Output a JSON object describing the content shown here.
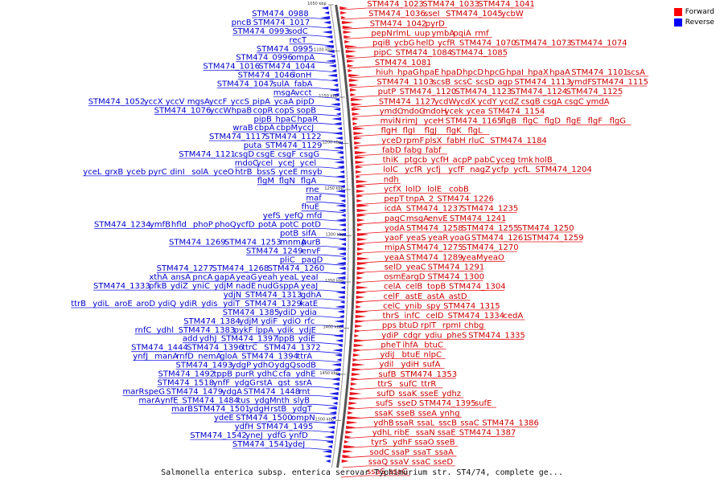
{
  "caption": "Salmonella enterica subsp. enterica serovar Typhimurium str. ST4/74, complete ge...",
  "legend": [
    {
      "label": "Forward",
      "color": "#ff0000"
    },
    {
      "label": "Reverse",
      "color": "#0000ff"
    }
  ],
  "colors": {
    "forward": "#e8131b",
    "reverse": "#1a1ae6",
    "forward_text": "#cc0000",
    "reverse_text": "#0000cc",
    "backbone": "#555555"
  },
  "scale_ticks": [
    "1050 kbp",
    "1100 kbp",
    "1150 kbp",
    "1200 kbp",
    "1250 kbp",
    "1300 kbp",
    "1350 kbp",
    "1400 kbp",
    "1450 kbp",
    "1500 kbp"
  ],
  "reverse_rows": [
    [
      "STM474_0988"
    ],
    [
      "pncB",
      "STM474_1017"
    ],
    [
      "STM474_0993",
      "sodC"
    ],
    [
      "recT"
    ],
    [
      "STM474_0995"
    ],
    [
      "STM474_0996",
      "ompA"
    ],
    [
      "STM474_1016",
      "STM474_1044"
    ],
    [
      "STM474_1046",
      "lonH"
    ],
    [
      "STM474_1047",
      "sulA",
      "fabA"
    ],
    [
      "msgA",
      "vcct"
    ],
    [
      "STM474_1052",
      "yccX",
      "yccV",
      "mgsA",
      "yccF",
      "yccS",
      "pipA",
      "ycaA",
      "pipD"
    ],
    [
      "STM474_1076",
      "yccW",
      "hpaB",
      "copR",
      "copS",
      "sopB"
    ],
    [
      "pipB",
      "hpaC",
      "hpaR"
    ],
    [
      "wraB",
      "cbpA",
      "cbpM",
      "yccJ"
    ],
    [
      "STM474_1117",
      "STM474_1122"
    ],
    [
      "puta",
      "STM474_1129"
    ],
    [
      "STM474_1121",
      "csgD",
      "csgE",
      "csgF",
      "csgG"
    ],
    [
      "mdoC",
      "ycel",
      "yceJ",
      "ycel"
    ],
    [
      "yceL",
      "grxB",
      "yceb",
      "pyrC",
      "dinI",
      "solA",
      "yceO",
      "htrB",
      "bssS",
      "yceE",
      "msyb"
    ],
    [
      "flgM",
      "flgN",
      "flgA"
    ],
    [
      "rne"
    ],
    [
      "maf"
    ],
    [
      "fhuE"
    ],
    [
      "yefS",
      "yefQ",
      "mfd"
    ],
    [
      "STM474_1234",
      "ymfB",
      "hfld",
      "phoP",
      "phoQ",
      "ycfD",
      "potA",
      "potC",
      "potD"
    ],
    [
      "potB",
      "sifA"
    ],
    [
      "STM474_1269",
      "STM474_1253",
      "mnmA",
      "purB"
    ],
    [
      "STM474_1249",
      "envF"
    ],
    [
      "pliC",
      "pagD"
    ],
    [
      "STM474_1277",
      "STM474_1268",
      "STM474_1260"
    ],
    [
      "xthA",
      "ansA",
      "pncA",
      "gapA",
      "yeaG",
      "yeah",
      "yeaL",
      "yeaI"
    ],
    [
      "STM474_1333",
      "pfkB",
      "ydiZ",
      "yniC",
      "ydjM",
      "nadE",
      "nudG",
      "sppA",
      "yeaJ"
    ],
    [
      "ydjN",
      "STM474_1313",
      "gdhA"
    ],
    [
      "ttrB",
      "ydiL",
      "aroE",
      "aroD",
      "ydiQ",
      "ydiR",
      "ydis",
      "ydiT",
      "STM474_1329",
      "katE"
    ],
    [
      "STM474_1385",
      "ydiD",
      "ydia"
    ],
    [
      "STM474_1384",
      "ydjM",
      "ydiF",
      "ydiO",
      "rfc"
    ],
    [
      "rnfC",
      "ydhl",
      "STM474_1383",
      "pykF",
      "lppA",
      "ydik",
      "ydjE"
    ],
    [
      "add",
      "ydhJ",
      "STM474_1397",
      "lppB",
      "ydiE"
    ],
    [
      "STM474_1444",
      "STM474_1396",
      "ttrC",
      "STM474_1372"
    ],
    [
      "ynfJ",
      "manA",
      "rnfD",
      "nemA",
      "gloA",
      "STM474_1394",
      "ttrA"
    ],
    [
      "STM474_1493",
      "ydgP",
      "ydhO",
      "ydgQ",
      "sodB"
    ],
    [
      "STM474_1492",
      "tppB",
      "purR",
      "ydhC",
      "cfa",
      "ydhE"
    ],
    [
      "STM474_1518",
      "ynfF",
      "ydgG",
      "rstA",
      "gst",
      "ssrA"
    ],
    [
      "marR",
      "speG",
      "STM474_1479",
      "ydgA",
      "STM474_1448",
      "rnt"
    ],
    [
      "marA",
      "ynfE",
      "STM474_1484",
      "tus",
      "ydgM",
      "nth",
      "slyB"
    ],
    [
      "marB",
      "STM474_1501",
      "ydgH",
      "rstB",
      "ydgT"
    ],
    [
      "ydeE",
      "STM474_1500",
      "ompN"
    ],
    [
      "ydfH",
      "STM474_1495"
    ],
    [
      "STM474_1542",
      "yneJ",
      "ydfG",
      "ynfD"
    ],
    [
      "STM474_1541",
      "ydeJ"
    ]
  ],
  "forward_rows": [
    [
      "STM474_1023",
      "STM474_1033",
      "STM474_1041"
    ],
    [
      "STM474_1036",
      "sseI",
      "STM474_1045",
      "ycbW"
    ],
    [
      "STM474_1042",
      "pyrD"
    ],
    [
      "pepN",
      "rlmL",
      "uup",
      "ymbA",
      "pqiA",
      "rmf"
    ],
    [
      "pqiB",
      "ycbG",
      "helD",
      "ycfR",
      "STM474_1070",
      "STM474_1073",
      "STM474_1074"
    ],
    [
      "pipC",
      "STM474_1084",
      "STM474_1085"
    ],
    [
      "STM474_1081"
    ],
    [
      "hiuh",
      "hpaG",
      "hpaE",
      "hpaD",
      "hpcD",
      "hpcG",
      "hpaI",
      "hpaX",
      "hpaA",
      "STM474_1101",
      "scsA"
    ],
    [
      "STM474_1103",
      "scsB",
      "scsC",
      "scsD",
      "agp",
      "STM474_1113",
      "ymdF",
      "STM474_1115"
    ],
    [
      "putP",
      "STM474_1120",
      "STM474_1123",
      "STM474_1124",
      "STM474_1125"
    ],
    [
      "STM474_1127",
      "ycdW",
      "ycdX",
      "ycdY",
      "ycdZ",
      "csgB",
      "csgA",
      "csgC",
      "ymdA"
    ],
    [
      "ymdC",
      "mdoG",
      "mdoH",
      "ycek",
      "ycea",
      "STM474_1154"
    ],
    [
      "mviN",
      "rimJ",
      "yceH",
      "STM474_1165",
      "flgB",
      "flgC",
      "flgD",
      "flgE",
      "flgF",
      "flgG"
    ],
    [
      "flgH",
      "flgI",
      "flgJ",
      "flgK",
      "flgL"
    ],
    [
      "yceD",
      "rpmF",
      "plsX",
      "fabH",
      "rluC",
      "STM474_1184"
    ],
    [
      "fabD",
      "fabg",
      "fabf"
    ],
    [
      "thiK",
      "ptgcb",
      "ycfH",
      "acpP",
      "pabC",
      "yceg",
      "tmk",
      "holB"
    ],
    [
      "lolC",
      "ycfR",
      "ycfj",
      "ycfF",
      "nagZ",
      "ycfp",
      "ycfL",
      "STM474_1204"
    ],
    [
      "ndh"
    ],
    [
      "ycfX",
      "lolD",
      "lolE",
      "cobB"
    ],
    [
      "pepT",
      "tnpA_2",
      "STM474_1226"
    ],
    [
      "icdA",
      "STM474_1237",
      "STM474_1235"
    ],
    [
      "pagC",
      "msgA",
      "envE",
      "STM474_1241"
    ],
    [
      "yodA",
      "STM474_1258",
      "STM474_1255",
      "STM474_1250"
    ],
    [
      "yaoF",
      "yeaS",
      "yeaR",
      "yoaG",
      "STM474_1261",
      "STM474_1259"
    ],
    [
      "mipA",
      "STM474_1275",
      "STM474_1270"
    ],
    [
      "yeaA",
      "STM474_1289",
      "yeaM",
      "yeaO"
    ],
    [
      "selD",
      "yeaC",
      "STM474_1291"
    ],
    [
      "osmE",
      "argD",
      "STM474_1300"
    ],
    [
      "celA",
      "celB",
      "topB",
      "STM474_1304"
    ],
    [
      "celF",
      "astE",
      "astA",
      "astD"
    ],
    [
      "celC",
      "ynib",
      "spy",
      "STM474_1315"
    ],
    [
      "thrS",
      "infC",
      "celD",
      "STM474_1334",
      "cedA"
    ],
    [
      "pps",
      "btuD",
      "rplT",
      "rpmI",
      "chbg"
    ],
    [
      "ydiP",
      "cdgr",
      "ydiu",
      "pheS",
      "STM474_1335"
    ],
    [
      "pheT",
      "ihfA",
      "btuC"
    ],
    [
      "ydiJ",
      "btuE",
      "nlpC"
    ],
    [
      "ydil",
      "ydiH",
      "sufA"
    ],
    [
      "sufB",
      "STM474_1353"
    ],
    [
      "ttrS",
      "sufC",
      "ttrR"
    ],
    [
      "sufD",
      "ssaK",
      "sseE",
      "ydhz"
    ],
    [
      "sufS",
      "sseD",
      "STM474_1395",
      "sufE"
    ],
    [
      "ssaK",
      "sseB",
      "sseA",
      "ynhg"
    ],
    [
      "ydhB",
      "ssaR",
      "ssaL",
      "sscB",
      "ssaC",
      "STM474_1386"
    ],
    [
      "ydhL",
      "ribE",
      "ssaN",
      "ssaE",
      "STM474_1387"
    ],
    [
      "tyrS",
      "ydhF",
      "ssaO",
      "sseB"
    ],
    [
      "sodC",
      "ssaP",
      "ssaT",
      "ssaA"
    ],
    [
      "ssaQ",
      "ssaV",
      "ssaC",
      "sseD"
    ],
    [
      "ssaS",
      "ssaG"
    ]
  ]
}
